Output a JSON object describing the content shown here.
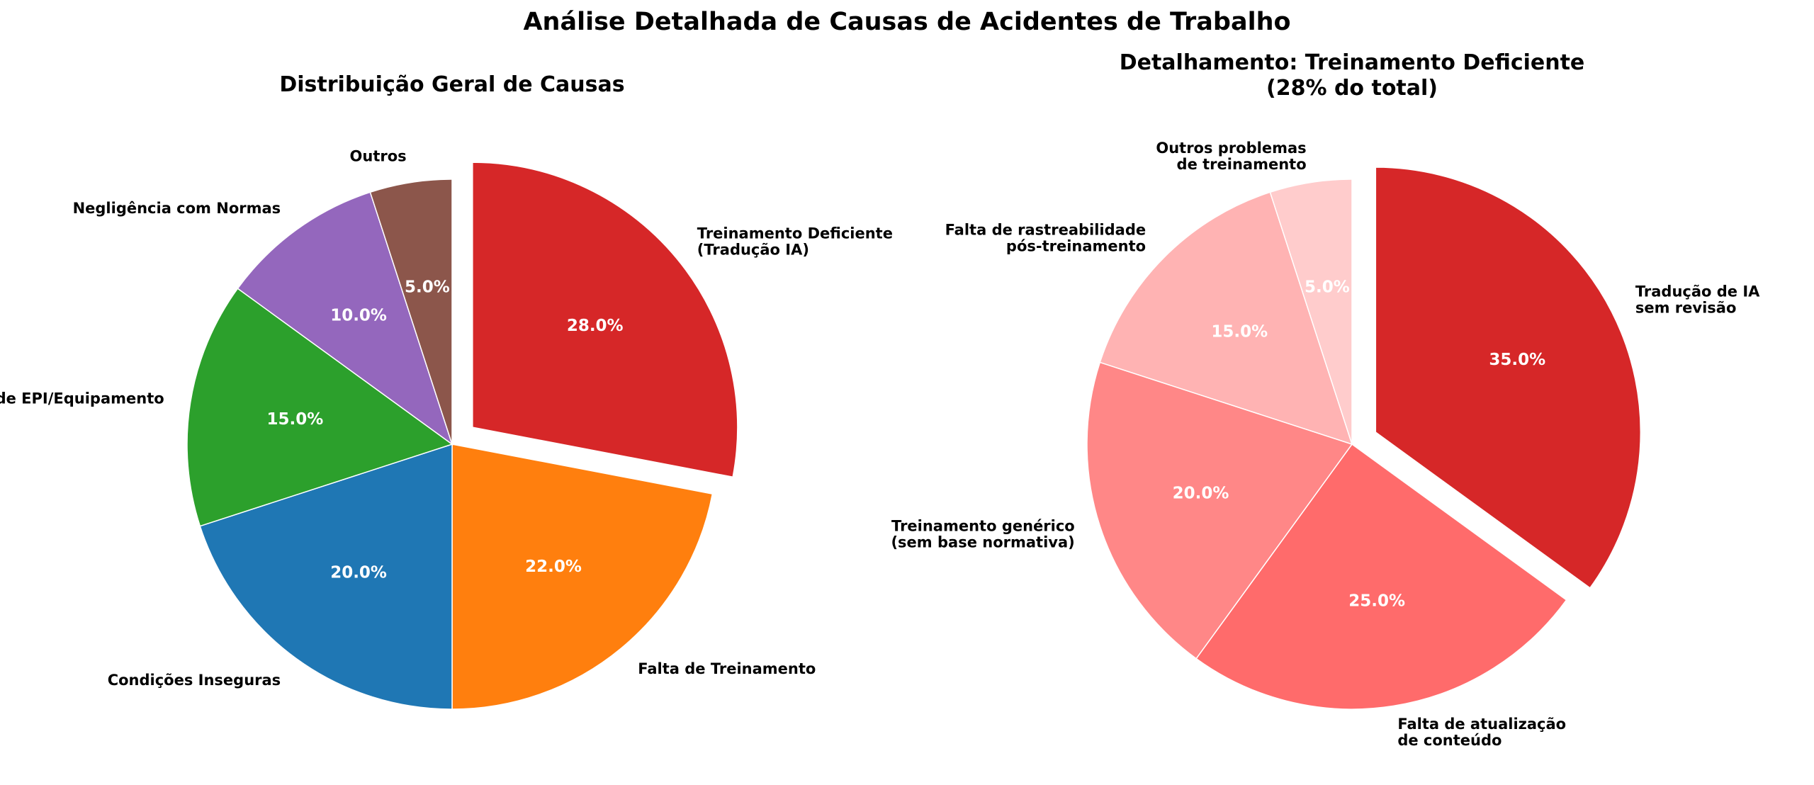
{
  "figure": {
    "title": "Análise Detalhada de Causas de Acidentes de Trabalho"
  },
  "chart_data": [
    {
      "type": "pie",
      "title": "Distribuição Geral de Causas",
      "start_angle_deg": 90,
      "direction": "clockwise",
      "pct_format": "%.1f%%",
      "slices": [
        {
          "label": "Treinamento Deficiente\n(Tradução IA)",
          "value": 28.0,
          "color": "#d62728",
          "exploded": true,
          "label_side": "left"
        },
        {
          "label": "Falta de Treinamento",
          "value": 22.0,
          "color": "#ff7f0e",
          "exploded": false,
          "label_side": "left"
        },
        {
          "label": "Condições Inseguras",
          "value": 20.0,
          "color": "#1f77b4",
          "exploded": false,
          "label_side": "right"
        },
        {
          "label": "Falta de EPI/Equipamento",
          "value": 15.0,
          "color": "#2ca02c",
          "exploded": false,
          "label_side": "right"
        },
        {
          "label": "Negligência com Normas",
          "value": 10.0,
          "color": "#9467bd",
          "exploded": false,
          "label_side": "right"
        },
        {
          "label": "Outros",
          "value": 5.0,
          "color": "#8c564b",
          "exploded": false,
          "label_side": "right"
        }
      ]
    },
    {
      "type": "pie",
      "title": "Detalhamento: Treinamento Deficiente\n(28% do total)",
      "start_angle_deg": 90,
      "direction": "clockwise",
      "pct_format": "%.1f%%",
      "slices": [
        {
          "label": "Tradução de IA\nsem revisão",
          "value": 35.0,
          "color": "#d62728",
          "exploded": true,
          "label_side": "left"
        },
        {
          "label": "Falta de atualização\nde conteúdo",
          "value": 25.0,
          "color": "#ff6b6b",
          "exploded": false,
          "label_side": "left"
        },
        {
          "label": "Treinamento genérico\n(sem base normativa)",
          "value": 20.0,
          "color": "#ff8787",
          "exploded": false,
          "label_side": "right"
        },
        {
          "label": "Falta de rastreabilidade\npós-treinamento",
          "value": 15.0,
          "color": "#ffb3b3",
          "exploded": false,
          "label_side": "right"
        },
        {
          "label": "Outros problemas\nde treinamento",
          "value": 5.0,
          "color": "#ffcccc",
          "exploded": false,
          "label_side": "right"
        }
      ]
    }
  ]
}
